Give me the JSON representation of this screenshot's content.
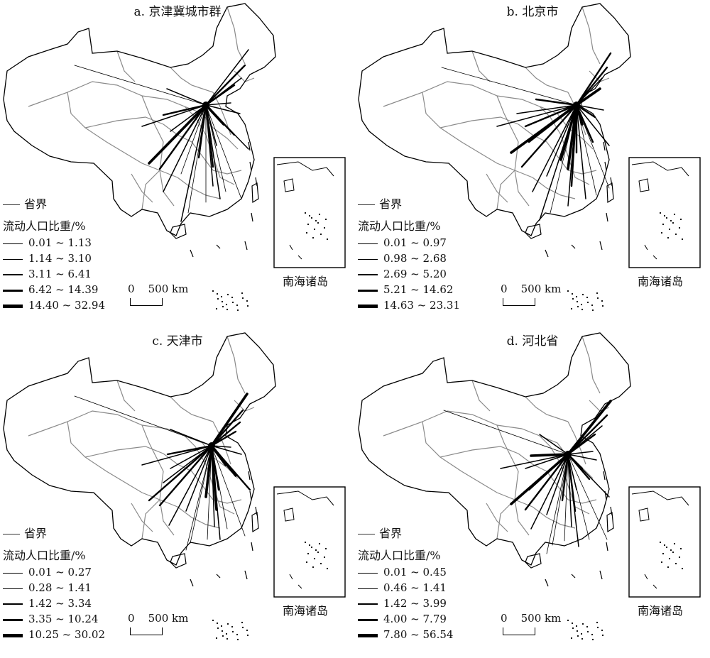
{
  "panels": [
    {
      "title": "a. 京津冀城市群",
      "legend": {
        "province_boundary": "省界",
        "title": "流动人口比重/%",
        "classes": [
          "0.01 ~ 1.13",
          "1.14 ~ 3.10",
          "3.11 ~ 6.41",
          "6.42 ~ 14.39",
          "14.40 ~ 32.94"
        ]
      },
      "scale": {
        "zero": "0",
        "distance": "500 km"
      },
      "inset": "南海诸岛"
    },
    {
      "title": "b. 北京市",
      "legend": {
        "province_boundary": "省界",
        "title": "流动人口比重/%",
        "classes": [
          "0.01 ~ 0.97",
          "0.98 ~ 2.68",
          "2.69 ~ 5.20",
          "5.21 ~ 14.62",
          "14.63 ~ 23.31"
        ]
      },
      "scale": {
        "zero": "0",
        "distance": "500 km"
      },
      "inset": "南海诸岛"
    },
    {
      "title": "c. 天津市",
      "legend": {
        "province_boundary": "省界",
        "title": "流动人口比重/%",
        "classes": [
          "0.01 ~ 0.27",
          "0.28 ~ 1.41",
          "1.42 ~ 3.34",
          "3.35 ~ 10.24",
          "10.25 ~ 30.02"
        ]
      },
      "scale": {
        "zero": "0",
        "distance": "500 km"
      },
      "inset": "南海诸岛"
    },
    {
      "title": "d. 河北省",
      "legend": {
        "province_boundary": "省界",
        "title": "流动人口比重/%",
        "classes": [
          "0.01 ~ 0.45",
          "0.46 ~ 1.41",
          "1.42 ~ 3.99",
          "4.00 ~ 7.79",
          "7.80 ~ 56.54"
        ]
      },
      "scale": {
        "zero": "0",
        "distance": "500 km"
      },
      "inset": "南海诸岛"
    }
  ],
  "colors": {
    "boundary": "#000000",
    "province": "#8a8a8a",
    "flow": "#000000"
  }
}
